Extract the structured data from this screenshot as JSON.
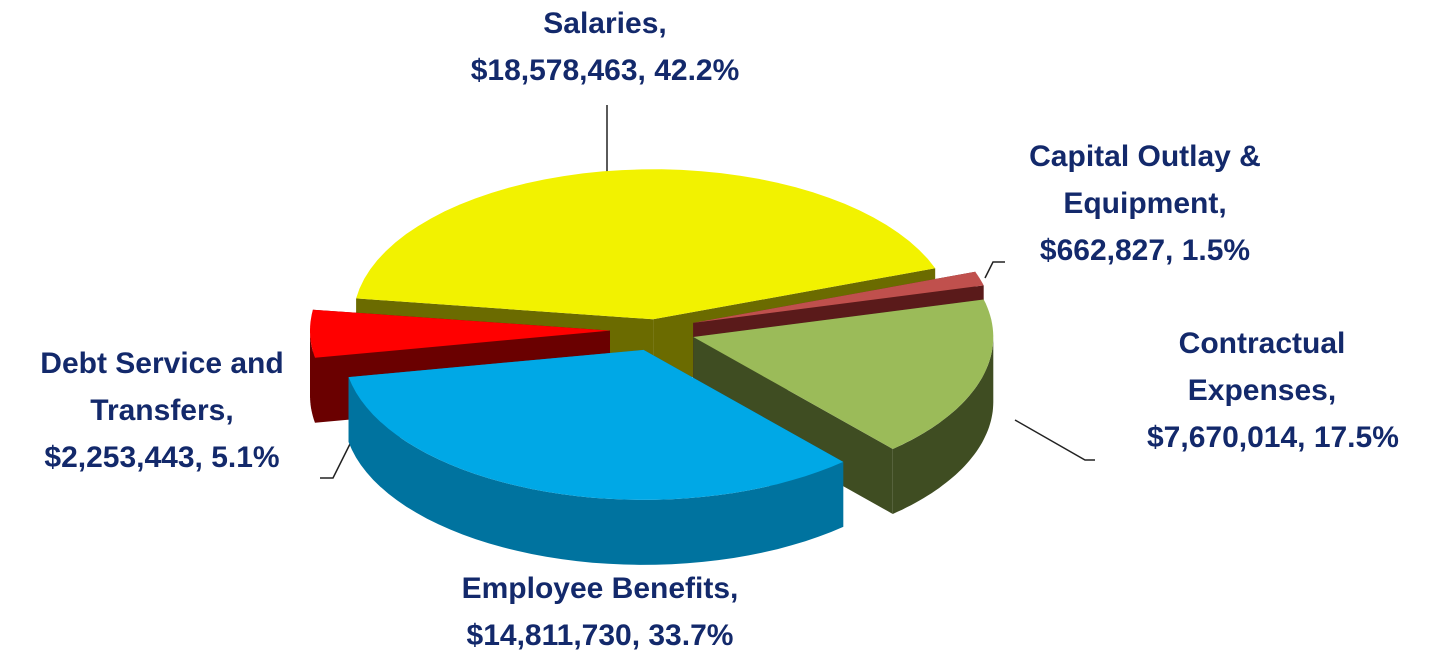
{
  "chart_data": {
    "type": "pie3d",
    "categories": [
      "Salaries,",
      "Capital Outlay & Equipment,",
      "Contractual Expenses,",
      "Employee Benefits,",
      "Debt Service and Transfers,"
    ],
    "values": [
      18578463,
      662827,
      7670014,
      14811730,
      2253443
    ],
    "value_labels": [
      "$18,578,463, 42.2%",
      "$662,827, 1.5%",
      "$7,670,014, 17.5%",
      "$14,811,730, 33.7%",
      "$2,253,443, 5.1%"
    ],
    "colors": [
      "#f2f200",
      "#c0504d",
      "#9bbb59",
      "#00a8e6",
      "#ff0000"
    ],
    "side_colors": [
      "#6b6b00",
      "#5a1a1a",
      "#3f4d22",
      "#00739f",
      "#6a0000"
    ]
  }
}
